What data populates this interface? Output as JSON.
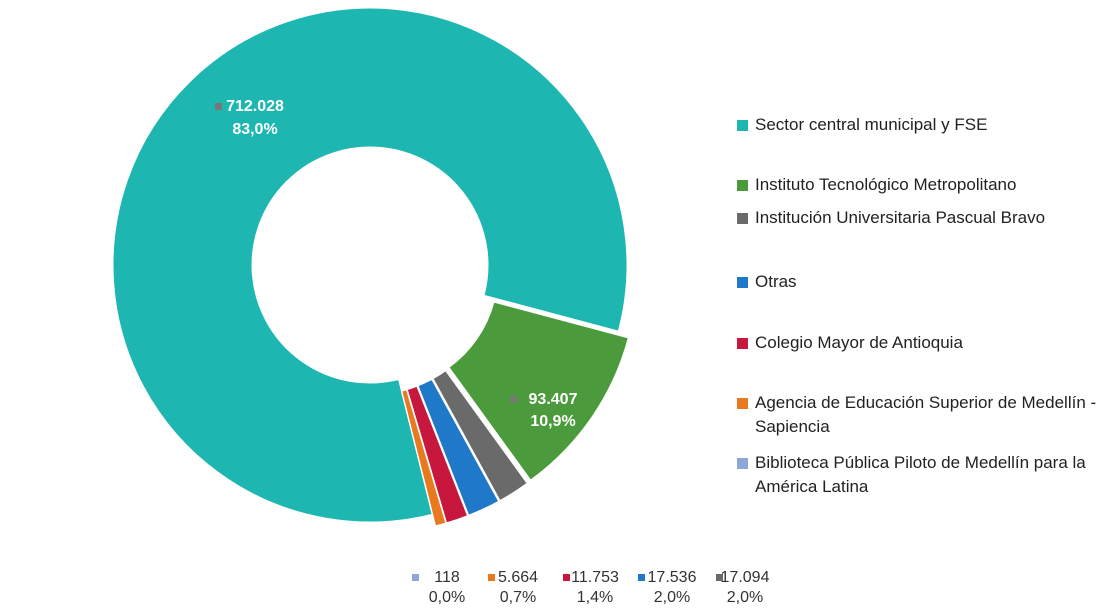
{
  "chart_data": {
    "type": "donut",
    "categories": [
      "Sector central municipal y FSE",
      "Instituto Tecnológico Metropolitano",
      "Institución Universitaria Pascual Bravo",
      "Otras",
      "Colegio Mayor de Antioquia",
      "Agencia de Educación Superior de Medellín - Sapiencia",
      "Biblioteca Pública Piloto de Medellín para la América Latina"
    ],
    "values": [
      712028,
      93407,
      17094,
      17536,
      11753,
      5664,
      118
    ],
    "value_labels": [
      "712.028",
      "93.407",
      "17.094",
      "17.536",
      "11.753",
      "5.664",
      "118"
    ],
    "percent_labels": [
      "83,0%",
      "10,9%",
      "2,0%",
      "2,0%",
      "1,4%",
      "0,7%",
      "0,0%"
    ],
    "colors": [
      "#1db6b1",
      "#4b9a3b",
      "#6a6a6a",
      "#1f78c8",
      "#c8173d",
      "#e8791f",
      "#8fa6d8"
    ],
    "legend": "right"
  }
}
